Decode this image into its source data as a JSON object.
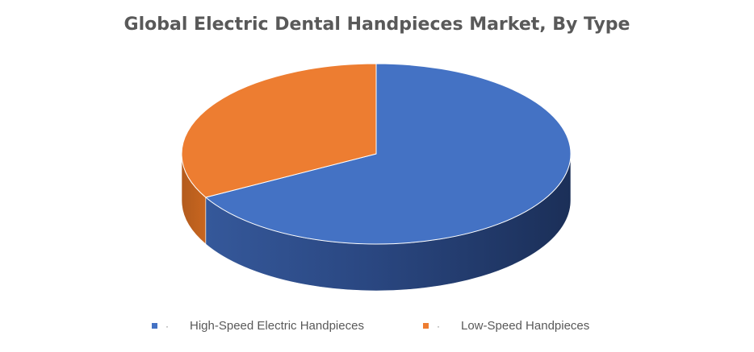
{
  "chart_data": {
    "type": "pie",
    "title": "Global Electric Dental Handpieces Market, By Type",
    "three_d": true,
    "legend_position": "bottom",
    "categories": [
      "High-Speed Electric Handpieces",
      "Low-Speed Handpieces"
    ],
    "values": [
      67,
      33
    ],
    "colors": [
      "#4472C4",
      "#ED7D31"
    ],
    "legend_marker": "·"
  }
}
